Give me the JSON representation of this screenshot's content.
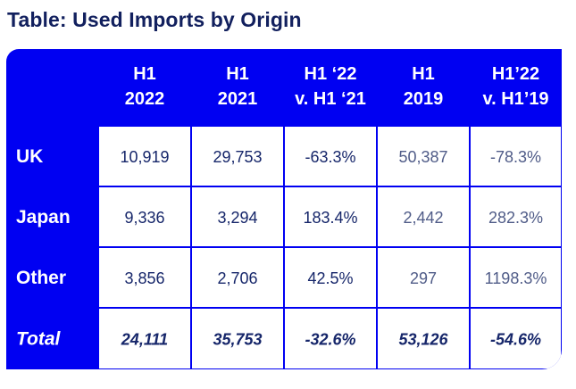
{
  "title": "Table: Used Imports by Origin",
  "chart_data": {
    "type": "table",
    "title": "Table: Used Imports by Origin",
    "columns": [
      [
        "H1",
        "2022"
      ],
      [
        "H1",
        "2021"
      ],
      [
        "H1 ‘22",
        "v. H1 ‘21"
      ],
      [
        "H1",
        "2019"
      ],
      [
        "H1’22",
        "v. H1’19"
      ]
    ],
    "rows": [
      {
        "label": "UK",
        "values": [
          "10,919",
          "29,753",
          "-63.3%",
          "50,387",
          "-78.3%"
        ]
      },
      {
        "label": "Japan",
        "values": [
          "9,336",
          "3,294",
          "183.4%",
          "2,442",
          "282.3%"
        ]
      },
      {
        "label": "Other",
        "values": [
          "3,856",
          "2,706",
          "42.5%",
          "297",
          "1198.3%"
        ]
      },
      {
        "label": "Total",
        "values": [
          "24,111",
          "35,753",
          "-32.6%",
          "53,126",
          "-54.6%"
        ],
        "emphasis": true
      }
    ],
    "colors": {
      "header_bg": "#0000f2",
      "title_text": "#12205e",
      "cell_text": "#16266a",
      "cell_text_light": "#505c88",
      "cell_bg": "#ffffff"
    }
  }
}
